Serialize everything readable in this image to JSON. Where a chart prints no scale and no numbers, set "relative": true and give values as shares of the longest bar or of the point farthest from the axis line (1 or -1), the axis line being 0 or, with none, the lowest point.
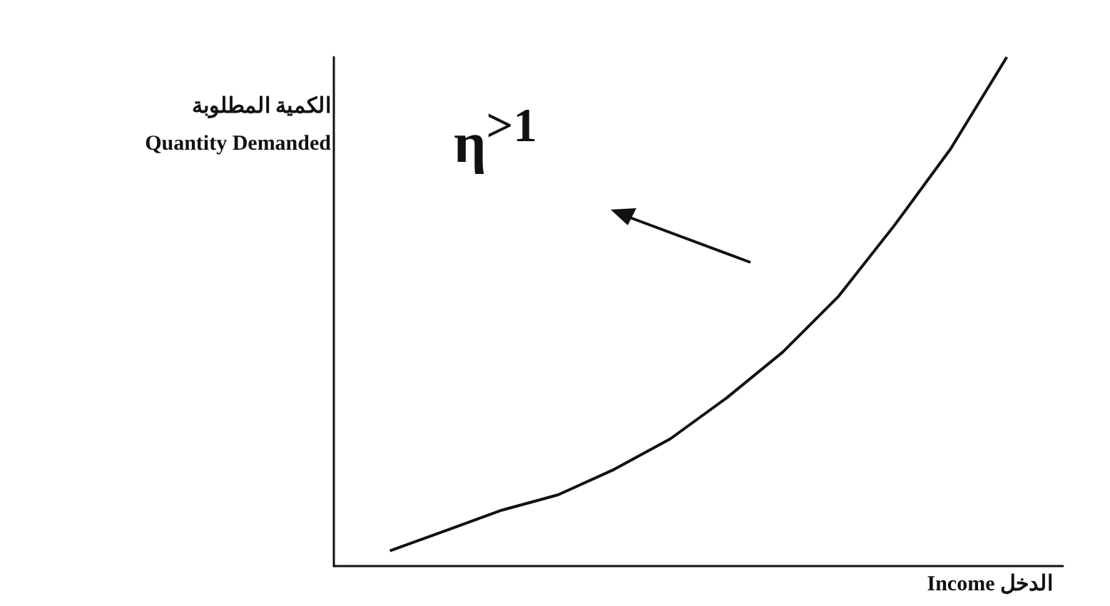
{
  "chart_data": {
    "type": "line",
    "relative": true,
    "ylabel": "الكمية المطلوبة\nQuantity Demanded",
    "xlabel": "Income الدخل",
    "annotations": [
      "η$^{>1}$"
    ],
    "categories": [
      null,
      null,
      null,
      null,
      null,
      null,
      null,
      null,
      null,
      null,
      null,
      null,
      null,
      null
    ],
    "series": [
      {
        "color": "#111111",
        "values": [
          null,
          0.03,
          0.07,
          0.11,
          0.14,
          0.19,
          0.25,
          0.33,
          0.42,
          0.53,
          0.67,
          0.82,
          1,
          null
        ]
      }
    ],
    "marker": "none",
    "line_style": "solid",
    "grid": false
  }
}
